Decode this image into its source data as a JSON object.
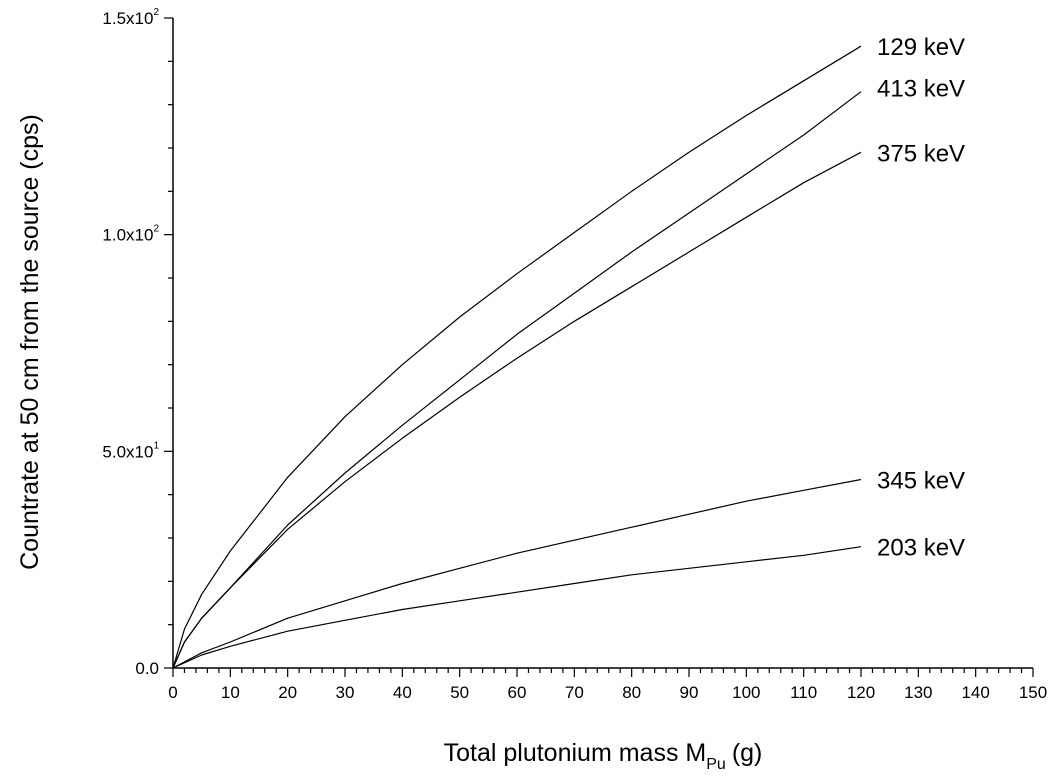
{
  "chart_data": {
    "type": "line",
    "title": "",
    "xlabel": "Total plutonium mass M",
    "xlabel_subscript": "Pu",
    "xlabel_unit": "(g)",
    "ylabel": "Countrate at 50 cm from the source (cps)",
    "xlim": [
      0,
      150
    ],
    "ylim": [
      0,
      150
    ],
    "x_major_ticks": [
      0,
      10,
      20,
      30,
      40,
      50,
      60,
      70,
      80,
      90,
      100,
      110,
      120,
      130,
      140,
      150
    ],
    "x_minor_step": 2,
    "y_major_ticks": [
      {
        "value": 0,
        "mantissa": "0.0",
        "exponent": ""
      },
      {
        "value": 50,
        "mantissa": "5.0x10",
        "exponent": "1"
      },
      {
        "value": 100,
        "mantissa": "1.0x10",
        "exponent": "2"
      },
      {
        "value": 150,
        "mantissa": "1.5x10",
        "exponent": "2"
      }
    ],
    "y_minor_step": 10,
    "grid": false,
    "legend": "none",
    "series": [
      {
        "name": "129 keV",
        "x": [
          0,
          2,
          5,
          10,
          20,
          30,
          40,
          50,
          60,
          70,
          80,
          90,
          100,
          110,
          120
        ],
        "y": [
          0,
          9,
          17,
          27,
          44,
          58,
          70,
          81,
          91,
          100.5,
          110,
          119,
          127.5,
          135.5,
          143.5
        ]
      },
      {
        "name": "413 keV",
        "x": [
          0,
          2,
          5,
          10,
          20,
          30,
          40,
          50,
          60,
          70,
          80,
          90,
          100,
          110,
          120
        ],
        "y": [
          0,
          6,
          11.5,
          18.5,
          33,
          45,
          56,
          66.5,
          77,
          86.5,
          96,
          105,
          114,
          123,
          133
        ]
      },
      {
        "name": "375 keV",
        "x": [
          0,
          2,
          5,
          10,
          20,
          30,
          40,
          50,
          60,
          70,
          80,
          90,
          100,
          110,
          120
        ],
        "y": [
          0,
          6,
          11.5,
          18.5,
          32,
          43,
          53,
          62.5,
          71.5,
          80,
          88,
          96,
          104,
          112,
          119
        ]
      },
      {
        "name": "345 keV",
        "x": [
          0,
          5,
          10,
          20,
          30,
          40,
          50,
          60,
          70,
          80,
          90,
          100,
          110,
          120
        ],
        "y": [
          0,
          3.5,
          6,
          11.5,
          15.5,
          19.5,
          23,
          26.5,
          29.5,
          32.5,
          35.5,
          38.5,
          41,
          43.5
        ]
      },
      {
        "name": "203 keV",
        "x": [
          0,
          5,
          10,
          20,
          30,
          40,
          50,
          60,
          70,
          80,
          90,
          100,
          110,
          120
        ],
        "y": [
          0,
          3,
          5,
          8.5,
          11,
          13.5,
          15.5,
          17.5,
          19.5,
          21.5,
          23,
          24.5,
          26,
          28
        ]
      }
    ]
  }
}
